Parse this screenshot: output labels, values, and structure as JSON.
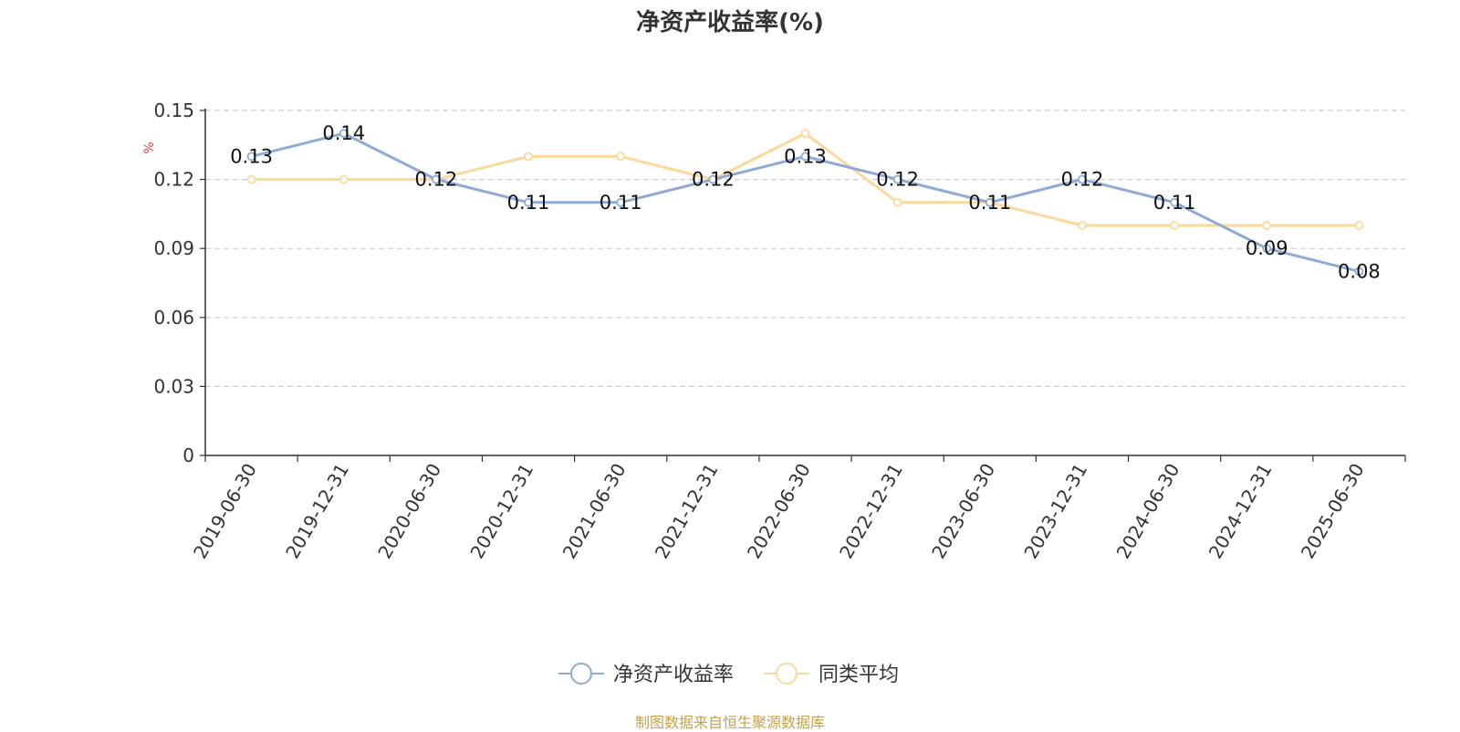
{
  "title": "净资产收益率(%)",
  "footer": "制图数据来自恒生聚源数据库",
  "chart_data": {
    "type": "line",
    "title": "净资产收益率(%)",
    "ylabel": "%",
    "xlabel": "",
    "ylim": [
      0,
      0.15
    ],
    "yticks": [
      "0",
      "0.03",
      "0.06",
      "0.09",
      "0.12",
      "0.15"
    ],
    "grid": true,
    "legend_position": "bottom-center",
    "categories": [
      "2019-06-30",
      "2019-12-31",
      "2020-06-30",
      "2020-12-31",
      "2021-06-30",
      "2021-12-31",
      "2022-06-30",
      "2022-12-31",
      "2023-06-30",
      "2023-12-31",
      "2024-06-30",
      "2024-12-31",
      "2025-06-30"
    ],
    "series": [
      {
        "name": "净资产收益率",
        "color": "#8eabd8",
        "values": [
          0.13,
          0.14,
          0.12,
          0.11,
          0.11,
          0.12,
          0.13,
          0.12,
          0.11,
          0.12,
          0.11,
          0.09,
          0.08
        ],
        "labels": [
          "0.13",
          "0.14",
          "0.12",
          "0.11",
          "0.11",
          "0.12",
          "0.13",
          "0.12",
          "0.11",
          "0.12",
          "0.11",
          "0.09",
          "0.08"
        ]
      },
      {
        "name": "同类平均",
        "color": "#fbd99a",
        "values": [
          0.12,
          0.12,
          0.12,
          0.13,
          0.13,
          0.12,
          0.14,
          0.11,
          0.11,
          0.1,
          0.1,
          0.1,
          0.1
        ]
      }
    ]
  }
}
